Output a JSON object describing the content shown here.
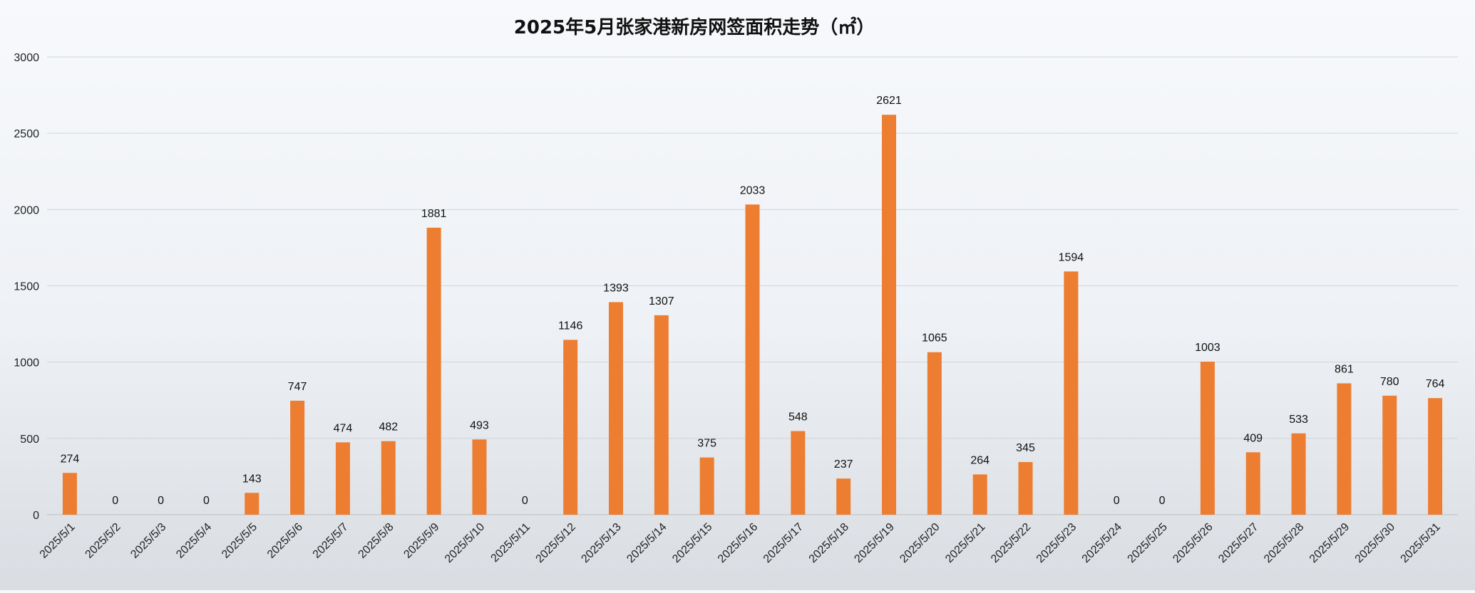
{
  "chart_data": {
    "type": "bar",
    "title": "2025年5月张家港新房网签面积走势（㎡）",
    "xlabel": "",
    "ylabel": "",
    "ylim": [
      0,
      3000
    ],
    "yticks": [
      0,
      500,
      1000,
      1500,
      2000,
      2500,
      3000
    ],
    "grid": true,
    "bar_color": "#ed7d31",
    "categories": [
      "2025/5/1",
      "2025/5/2",
      "2025/5/3",
      "2025/5/4",
      "2025/5/5",
      "2025/5/6",
      "2025/5/7",
      "2025/5/8",
      "2025/5/9",
      "2025/5/10",
      "2025/5/11",
      "2025/5/12",
      "2025/5/13",
      "2025/5/14",
      "2025/5/15",
      "2025/5/16",
      "2025/5/17",
      "2025/5/18",
      "2025/5/19",
      "2025/5/20",
      "2025/5/21",
      "2025/5/22",
      "2025/5/23",
      "2025/5/24",
      "2025/5/25",
      "2025/5/26",
      "2025/5/27",
      "2025/5/28",
      "2025/5/29",
      "2025/5/30",
      "2025/5/31"
    ],
    "values": [
      274,
      0,
      0,
      0,
      143,
      747,
      474,
      482,
      1881,
      493,
      0,
      1146,
      1393,
      1307,
      375,
      2033,
      548,
      237,
      2621,
      1065,
      264,
      345,
      1594,
      0,
      0,
      1003,
      409,
      533,
      861,
      780,
      764
    ]
  }
}
